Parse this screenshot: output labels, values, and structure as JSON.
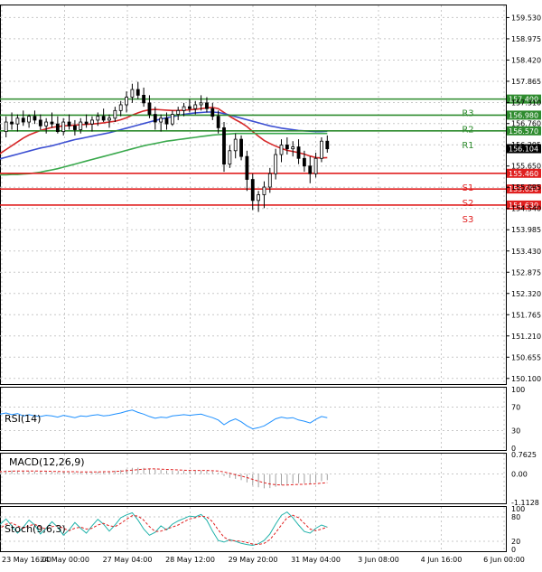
{
  "chart_data": {
    "type": "candlestick",
    "price_axis": {
      "ticks": [
        "159.530",
        "158.975",
        "158.420",
        "157.865",
        "157.310",
        "156.760",
        "156.205",
        "155.650",
        "155.095",
        "154.540",
        "153.985",
        "153.430",
        "152.875",
        "152.320",
        "151.765",
        "151.210",
        "150.655",
        "150.100"
      ],
      "ylim": [
        150.0,
        159.8
      ]
    },
    "time_axis": {
      "ticks": [
        "23 May 16:00",
        "24 May 00:00",
        "27 May 04:00",
        "28 May 12:00",
        "29 May 20:00",
        "31 May 04:00",
        "3 Jun 08:00",
        "4 Jun 16:00",
        "6 Jun 00:00"
      ]
    },
    "candles": [
      {
        "o": 156.1,
        "h": 156.35,
        "l": 155.95,
        "c": 156.25
      },
      {
        "o": 156.25,
        "h": 156.7,
        "l": 156.15,
        "c": 156.55
      },
      {
        "o": 156.55,
        "h": 156.95,
        "l": 156.4,
        "c": 156.8
      },
      {
        "o": 156.8,
        "h": 157.05,
        "l": 156.6,
        "c": 156.75
      },
      {
        "o": 156.75,
        "h": 157.0,
        "l": 156.55,
        "c": 156.9
      },
      {
        "o": 156.9,
        "h": 157.1,
        "l": 156.7,
        "c": 156.8
      },
      {
        "o": 156.8,
        "h": 157.0,
        "l": 156.65,
        "c": 156.95
      },
      {
        "o": 156.95,
        "h": 157.1,
        "l": 156.75,
        "c": 156.85
      },
      {
        "o": 156.85,
        "h": 157.0,
        "l": 156.6,
        "c": 156.7
      },
      {
        "o": 156.7,
        "h": 156.9,
        "l": 156.5,
        "c": 156.8
      },
      {
        "o": 156.8,
        "h": 157.05,
        "l": 156.65,
        "c": 156.75
      },
      {
        "o": 156.75,
        "h": 156.95,
        "l": 156.5,
        "c": 156.55
      },
      {
        "o": 156.55,
        "h": 156.9,
        "l": 156.45,
        "c": 156.8
      },
      {
        "o": 156.8,
        "h": 157.0,
        "l": 156.6,
        "c": 156.7
      },
      {
        "o": 156.7,
        "h": 156.85,
        "l": 156.45,
        "c": 156.6
      },
      {
        "o": 156.6,
        "h": 156.9,
        "l": 156.5,
        "c": 156.8
      },
      {
        "o": 156.8,
        "h": 157.0,
        "l": 156.65,
        "c": 156.75
      },
      {
        "o": 156.75,
        "h": 156.95,
        "l": 156.55,
        "c": 156.85
      },
      {
        "o": 156.85,
        "h": 157.05,
        "l": 156.7,
        "c": 156.95
      },
      {
        "o": 156.95,
        "h": 157.15,
        "l": 156.8,
        "c": 156.85
      },
      {
        "o": 156.85,
        "h": 157.0,
        "l": 156.65,
        "c": 156.9
      },
      {
        "o": 156.9,
        "h": 157.2,
        "l": 156.8,
        "c": 157.1
      },
      {
        "o": 157.1,
        "h": 157.35,
        "l": 156.95,
        "c": 157.25
      },
      {
        "o": 157.25,
        "h": 157.6,
        "l": 157.05,
        "c": 157.45
      },
      {
        "o": 157.45,
        "h": 157.8,
        "l": 157.3,
        "c": 157.65
      },
      {
        "o": 157.65,
        "h": 157.85,
        "l": 157.4,
        "c": 157.5
      },
      {
        "o": 157.5,
        "h": 157.7,
        "l": 157.2,
        "c": 157.3
      },
      {
        "o": 157.3,
        "h": 157.5,
        "l": 156.9,
        "c": 157.0
      },
      {
        "o": 157.0,
        "h": 157.2,
        "l": 156.6,
        "c": 156.8
      },
      {
        "o": 156.8,
        "h": 157.0,
        "l": 156.55,
        "c": 156.9
      },
      {
        "o": 156.9,
        "h": 157.05,
        "l": 156.6,
        "c": 156.75
      },
      {
        "o": 156.75,
        "h": 157.1,
        "l": 156.7,
        "c": 157.0
      },
      {
        "o": 157.0,
        "h": 157.2,
        "l": 156.85,
        "c": 157.1
      },
      {
        "o": 157.1,
        "h": 157.3,
        "l": 156.95,
        "c": 157.2
      },
      {
        "o": 157.2,
        "h": 157.4,
        "l": 157.05,
        "c": 157.15
      },
      {
        "o": 157.15,
        "h": 157.35,
        "l": 157.0,
        "c": 157.25
      },
      {
        "o": 157.25,
        "h": 157.5,
        "l": 157.1,
        "c": 157.3
      },
      {
        "o": 157.3,
        "h": 157.45,
        "l": 157.05,
        "c": 157.15
      },
      {
        "o": 157.15,
        "h": 157.3,
        "l": 156.85,
        "c": 156.95
      },
      {
        "o": 156.95,
        "h": 157.1,
        "l": 156.5,
        "c": 156.65
      },
      {
        "o": 156.65,
        "h": 156.8,
        "l": 155.5,
        "c": 155.7
      },
      {
        "o": 155.7,
        "h": 156.2,
        "l": 155.6,
        "c": 156.05
      },
      {
        "o": 156.05,
        "h": 156.5,
        "l": 155.85,
        "c": 156.35
      },
      {
        "o": 156.35,
        "h": 156.45,
        "l": 155.8,
        "c": 155.9
      },
      {
        "o": 155.9,
        "h": 156.05,
        "l": 155.0,
        "c": 155.3
      },
      {
        "o": 155.3,
        "h": 155.45,
        "l": 154.5,
        "c": 154.75
      },
      {
        "o": 154.75,
        "h": 155.0,
        "l": 154.45,
        "c": 154.9
      },
      {
        "o": 154.9,
        "h": 155.25,
        "l": 154.55,
        "c": 155.1
      },
      {
        "o": 155.1,
        "h": 155.6,
        "l": 154.95,
        "c": 155.45
      },
      {
        "o": 155.45,
        "h": 156.1,
        "l": 155.3,
        "c": 155.95
      },
      {
        "o": 155.95,
        "h": 156.35,
        "l": 155.75,
        "c": 156.2
      },
      {
        "o": 156.2,
        "h": 156.4,
        "l": 155.95,
        "c": 156.1
      },
      {
        "o": 156.1,
        "h": 156.3,
        "l": 155.9,
        "c": 156.15
      },
      {
        "o": 156.15,
        "h": 156.35,
        "l": 155.7,
        "c": 155.85
      },
      {
        "o": 155.85,
        "h": 156.05,
        "l": 155.5,
        "c": 155.65
      },
      {
        "o": 155.65,
        "h": 155.9,
        "l": 155.2,
        "c": 155.45
      },
      {
        "o": 155.45,
        "h": 156.0,
        "l": 155.35,
        "c": 155.85
      },
      {
        "o": 155.85,
        "h": 156.4,
        "l": 155.75,
        "c": 156.3
      },
      {
        "o": 156.3,
        "h": 156.45,
        "l": 156.0,
        "c": 156.1
      }
    ],
    "moving_averages": [
      {
        "color": "#d62728",
        "values": [
          155.9,
          155.98,
          156.08,
          156.18,
          156.28,
          156.38,
          156.46,
          156.52,
          156.58,
          156.62,
          156.66,
          156.68,
          156.7,
          156.71,
          156.72,
          156.73,
          156.74,
          156.75,
          156.76,
          156.78,
          156.8,
          156.82,
          156.86,
          156.91,
          156.98,
          157.04,
          157.09,
          157.12,
          157.13,
          157.12,
          157.11,
          157.1,
          157.1,
          157.11,
          157.12,
          157.13,
          157.15,
          157.17,
          157.18,
          157.15,
          157.05,
          156.95,
          156.86,
          156.78,
          156.68,
          156.55,
          156.43,
          156.32,
          156.24,
          156.17,
          156.11,
          156.06,
          156.03,
          156.0,
          155.96,
          155.91,
          155.87,
          155.86,
          155.87
        ]
      },
      {
        "color": "#3c4fd2",
        "values": [
          155.8,
          155.84,
          155.88,
          155.92,
          155.96,
          156.0,
          156.04,
          156.08,
          156.12,
          156.15,
          156.18,
          156.22,
          156.26,
          156.3,
          156.34,
          156.37,
          156.4,
          156.43,
          156.46,
          156.49,
          156.52,
          156.56,
          156.6,
          156.64,
          156.68,
          156.72,
          156.76,
          156.8,
          156.84,
          156.88,
          156.91,
          156.94,
          156.97,
          157.0,
          157.02,
          157.04,
          157.05,
          157.06,
          157.06,
          157.05,
          157.02,
          156.98,
          156.94,
          156.9,
          156.86,
          156.82,
          156.78,
          156.74,
          156.7,
          156.67,
          156.64,
          156.62,
          156.6,
          156.58,
          156.57,
          156.56,
          156.55,
          156.55,
          156.56
        ]
      },
      {
        "color": "#3aa94d",
        "values": [
          155.42,
          155.42,
          155.42,
          155.43,
          155.43,
          155.44,
          155.45,
          155.47,
          155.49,
          155.52,
          155.55,
          155.58,
          155.62,
          155.66,
          155.7,
          155.74,
          155.78,
          155.82,
          155.86,
          155.9,
          155.94,
          155.98,
          156.02,
          156.06,
          156.1,
          156.14,
          156.18,
          156.21,
          156.24,
          156.27,
          156.3,
          156.32,
          156.34,
          156.36,
          156.38,
          156.4,
          156.42,
          156.44,
          156.46,
          156.47,
          156.48,
          156.49,
          156.5,
          156.5,
          156.5,
          156.5,
          156.5,
          156.5,
          156.5,
          156.5,
          156.5,
          156.5,
          156.5,
          156.5,
          156.5,
          156.5,
          156.5,
          156.5,
          156.5
        ]
      }
    ],
    "levels": [
      {
        "name": "R3",
        "value": 157.4,
        "label": "157.400",
        "color": "#2e8b2e"
      },
      {
        "name": "R2",
        "value": 156.98,
        "label": "156.980",
        "color": "#2e8b2e"
      },
      {
        "name": "R1",
        "value": 156.57,
        "label": "156.570",
        "color": "#2e8b2e"
      },
      {
        "name": "S1",
        "value": 155.46,
        "label": "155.460",
        "color": "#e02020"
      },
      {
        "name": "S2",
        "value": 155.05,
        "label": "155.050",
        "color": "#e02020"
      },
      {
        "name": "S3",
        "value": 154.63,
        "label": "154.630",
        "color": "#e02020"
      }
    ],
    "last_price": {
      "value": 156.104,
      "label": "156.104"
    },
    "rsi": {
      "title": "RSI(14)",
      "ticks": [
        "100",
        "70",
        "30",
        "0"
      ],
      "values": [
        56,
        58,
        60,
        57,
        59,
        55,
        57,
        55,
        54,
        56,
        55,
        53,
        56,
        54,
        52,
        55,
        54,
        56,
        57,
        55,
        56,
        58,
        60,
        63,
        65,
        61,
        58,
        54,
        51,
        53,
        52,
        55,
        56,
        57,
        56,
        57,
        58,
        55,
        52,
        48,
        40,
        46,
        50,
        45,
        38,
        33,
        35,
        38,
        44,
        50,
        53,
        51,
        52,
        48,
        46,
        43,
        49,
        54,
        52
      ]
    },
    "macd": {
      "title": "MACD(12,26,9)",
      "ticks": [
        "0.7625",
        "0.00",
        "-1.1128"
      ],
      "histogram": [
        0.12,
        0.13,
        0.14,
        0.14,
        0.13,
        0.12,
        0.11,
        0.1,
        0.09,
        0.09,
        0.08,
        0.08,
        0.08,
        0.07,
        0.07,
        0.07,
        0.07,
        0.08,
        0.09,
        0.1,
        0.11,
        0.13,
        0.16,
        0.2,
        0.24,
        0.25,
        0.24,
        0.21,
        0.18,
        0.16,
        0.14,
        0.13,
        0.12,
        0.12,
        0.12,
        0.13,
        0.13,
        0.12,
        0.1,
        0.05,
        -0.08,
        -0.15,
        -0.19,
        -0.24,
        -0.33,
        -0.45,
        -0.52,
        -0.56,
        -0.55,
        -0.5,
        -0.44,
        -0.4,
        -0.37,
        -0.36,
        -0.36,
        -0.37,
        -0.34,
        -0.28,
        -0.24
      ],
      "signal": [
        0.08,
        0.09,
        0.1,
        0.11,
        0.12,
        0.12,
        0.12,
        0.12,
        0.11,
        0.11,
        0.1,
        0.1,
        0.09,
        0.09,
        0.09,
        0.08,
        0.08,
        0.08,
        0.08,
        0.09,
        0.09,
        0.1,
        0.11,
        0.13,
        0.15,
        0.17,
        0.19,
        0.2,
        0.2,
        0.19,
        0.18,
        0.17,
        0.16,
        0.15,
        0.14,
        0.14,
        0.14,
        0.14,
        0.13,
        0.12,
        0.08,
        0.03,
        -0.03,
        -0.08,
        -0.14,
        -0.21,
        -0.28,
        -0.34,
        -0.39,
        -0.42,
        -0.43,
        -0.43,
        -0.42,
        -0.41,
        -0.4,
        -0.39,
        -0.38,
        -0.36,
        -0.34
      ]
    },
    "stoch": {
      "title": "Stoch(9,6,3)",
      "ticks": [
        "100",
        "80",
        "20",
        "0"
      ],
      "main": [
        45,
        62,
        75,
        58,
        40,
        55,
        72,
        60,
        38,
        52,
        68,
        55,
        35,
        48,
        66,
        52,
        40,
        58,
        74,
        62,
        45,
        60,
        78,
        85,
        90,
        72,
        50,
        35,
        42,
        58,
        48,
        62,
        70,
        76,
        82,
        80,
        86,
        72,
        45,
        22,
        18,
        24,
        20,
        15,
        12,
        10,
        14,
        22,
        38,
        62,
        84,
        92,
        78,
        60,
        44,
        40,
        52,
        60,
        55
      ],
      "signal": [
        40,
        52,
        62,
        65,
        58,
        52,
        58,
        62,
        55,
        50,
        56,
        58,
        52,
        46,
        52,
        55,
        50,
        52,
        60,
        64,
        58,
        56,
        64,
        74,
        83,
        82,
        72,
        56,
        44,
        45,
        50,
        55,
        60,
        68,
        75,
        78,
        82,
        80,
        68,
        48,
        30,
        22,
        21,
        20,
        17,
        13,
        12,
        15,
        24,
        41,
        60,
        78,
        84,
        78,
        64,
        50,
        46,
        50,
        55
      ]
    }
  }
}
